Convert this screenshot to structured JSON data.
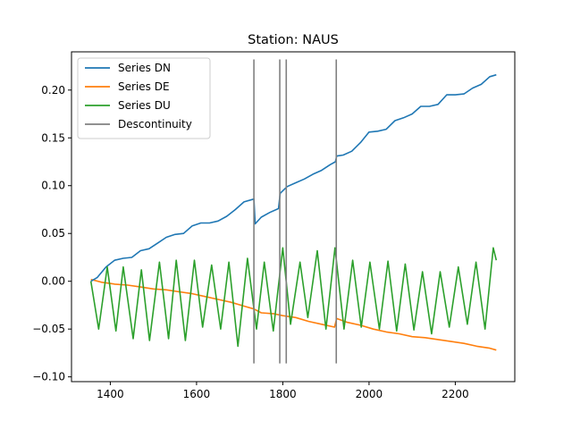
{
  "chart_data": {
    "type": "line",
    "title": "Station: NAUS",
    "xlabel": "",
    "ylabel": "",
    "xlim": [
      1310,
      2338
    ],
    "ylim": [
      -0.105,
      0.24
    ],
    "xticks": [
      1400,
      1600,
      1800,
      2000,
      2200
    ],
    "xtick_labels": [
      "1400",
      "1600",
      "1800",
      "2000",
      "2200"
    ],
    "yticks": [
      -0.1,
      -0.05,
      0.0,
      0.05,
      0.1,
      0.15,
      0.2
    ],
    "ytick_labels": [
      "−0.10",
      "−0.05",
      "0.00",
      "0.05",
      "0.10",
      "0.15",
      "0.20"
    ],
    "legend_position": "top-left",
    "grid": false,
    "series": [
      {
        "name": "Series DN",
        "color": "#1f77b4",
        "x": [
          1355,
          1370,
          1390,
          1410,
          1430,
          1450,
          1470,
          1490,
          1510,
          1530,
          1550,
          1570,
          1590,
          1610,
          1630,
          1650,
          1670,
          1690,
          1710,
          1733,
          1736,
          1750,
          1770,
          1790,
          1794,
          1810,
          1830,
          1850,
          1870,
          1890,
          1910,
          1922,
          1925,
          1940,
          1960,
          1980,
          2000,
          2020,
          2040,
          2060,
          2080,
          2100,
          2120,
          2140,
          2160,
          2180,
          2200,
          2220,
          2240,
          2260,
          2280,
          2295
        ],
        "y": [
          0.0,
          0.004,
          0.015,
          0.022,
          0.024,
          0.025,
          0.032,
          0.034,
          0.04,
          0.046,
          0.049,
          0.05,
          0.058,
          0.061,
          0.061,
          0.063,
          0.068,
          0.075,
          0.083,
          0.086,
          0.06,
          0.067,
          0.072,
          0.076,
          0.092,
          0.099,
          0.103,
          0.107,
          0.112,
          0.116,
          0.122,
          0.125,
          0.131,
          0.132,
          0.136,
          0.145,
          0.156,
          0.157,
          0.159,
          0.168,
          0.171,
          0.175,
          0.183,
          0.183,
          0.185,
          0.195,
          0.195,
          0.196,
          0.202,
          0.206,
          0.214,
          0.216
        ]
      },
      {
        "name": "Series DE",
        "color": "#ff7f0e",
        "x": [
          1355,
          1380,
          1410,
          1440,
          1470,
          1500,
          1530,
          1560,
          1590,
          1620,
          1650,
          1680,
          1710,
          1733,
          1750,
          1780,
          1800,
          1830,
          1860,
          1890,
          1920,
          1925,
          1950,
          1980,
          2010,
          2040,
          2070,
          2100,
          2130,
          2160,
          2190,
          2220,
          2250,
          2280,
          2295
        ],
        "y": [
          0.002,
          -0.001,
          -0.003,
          -0.004,
          -0.006,
          -0.008,
          -0.009,
          -0.011,
          -0.013,
          -0.016,
          -0.019,
          -0.022,
          -0.026,
          -0.029,
          -0.033,
          -0.034,
          -0.036,
          -0.038,
          -0.042,
          -0.045,
          -0.048,
          -0.039,
          -0.043,
          -0.046,
          -0.05,
          -0.053,
          -0.055,
          -0.058,
          -0.059,
          -0.061,
          -0.063,
          -0.065,
          -0.068,
          -0.07,
          -0.072
        ]
      },
      {
        "name": "Series DU",
        "color": "#2ca02c",
        "x": [
          1355,
          1373,
          1393,
          1413,
          1430,
          1453,
          1472,
          1491,
          1514,
          1535,
          1553,
          1574,
          1595,
          1614,
          1635,
          1656,
          1675,
          1696,
          1718,
          1739,
          1757,
          1778,
          1800,
          1818,
          1840,
          1858,
          1880,
          1900,
          1921,
          1942,
          1962,
          1982,
          2002,
          2024,
          2044,
          2064,
          2084,
          2104,
          2124,
          2145,
          2165,
          2186,
          2207,
          2228,
          2248,
          2269,
          2288,
          2295
        ],
        "y": [
          0.0,
          -0.05,
          0.015,
          -0.052,
          0.015,
          -0.06,
          0.012,
          -0.062,
          0.02,
          -0.06,
          0.022,
          -0.062,
          0.022,
          -0.048,
          0.017,
          -0.05,
          0.02,
          -0.068,
          0.024,
          -0.05,
          0.02,
          -0.052,
          0.035,
          -0.045,
          0.02,
          -0.038,
          0.032,
          -0.05,
          0.035,
          -0.05,
          0.022,
          -0.048,
          0.02,
          -0.05,
          0.021,
          -0.052,
          0.018,
          -0.051,
          0.01,
          -0.055,
          0.01,
          -0.048,
          0.015,
          -0.045,
          0.02,
          -0.05,
          0.035,
          0.022
        ]
      }
    ],
    "discontinuity": {
      "name": "Descontinuity",
      "color": "#808080",
      "x": [
        1733,
        1793,
        1808,
        1924
      ],
      "y_range": [
        -0.086,
        0.232
      ]
    }
  }
}
